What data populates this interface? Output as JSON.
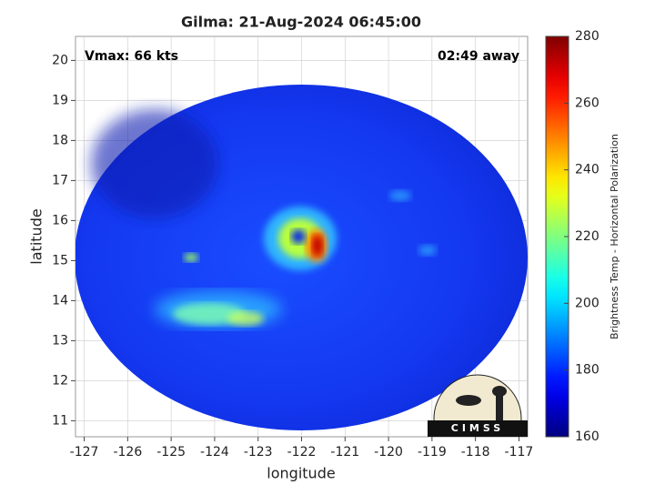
{
  "map": {
    "title": "Gilma: 21-Aug-2024 06:45:00",
    "annotations": {
      "vmax": "Vmax: 66 kts",
      "time_away": "02:49 away"
    },
    "xlabel": "longitude",
    "ylabel": "latitude",
    "xlim": [
      -127.2,
      -116.8
    ],
    "ylim": [
      10.6,
      20.6
    ],
    "xticks": [
      -127,
      -126,
      -125,
      -124,
      -123,
      -122,
      -121,
      -120,
      -119,
      -118,
      -117
    ],
    "yticks": [
      11,
      12,
      13,
      14,
      15,
      16,
      17,
      18,
      19,
      20
    ],
    "grid": true,
    "colorbar": {
      "label": "Brightness Temp - Horizontal Polarization",
      "colormap": "jet",
      "lim": [
        160,
        280
      ],
      "ticks": [
        160,
        180,
        200,
        220,
        240,
        260,
        280
      ]
    },
    "logo": "CIMSS"
  }
}
